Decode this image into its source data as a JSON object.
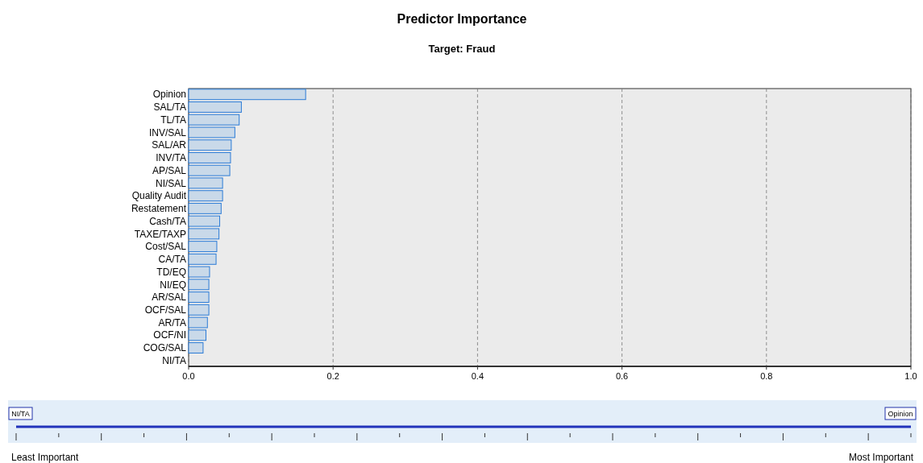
{
  "chart_data": {
    "type": "bar",
    "orientation": "horizontal",
    "title": "Predictor Importance",
    "subtitle": "Target: Fraud",
    "categories": [
      "Opinion",
      "SAL/TA",
      "TL/TA",
      "INV/SAL",
      "SAL/AR",
      "INV/TA",
      "AP/SAL",
      "NI/SAL",
      "Quality Audit",
      "Restatement",
      "Cash/TA",
      "TAXE/TAXP",
      "Cost/SAL",
      "CA/TA",
      "TD/EQ",
      "NI/EQ",
      "AR/SAL",
      "OCF/SAL",
      "AR/TA",
      "OCF/NI",
      "COG/SAL",
      "NI/TA"
    ],
    "values": [
      0.162,
      0.073,
      0.07,
      0.064,
      0.059,
      0.058,
      0.057,
      0.047,
      0.047,
      0.045,
      0.043,
      0.042,
      0.039,
      0.038,
      0.029,
      0.028,
      0.028,
      0.028,
      0.026,
      0.024,
      0.02,
      0
    ],
    "color": "#c9d9e9",
    "xlim": [
      0,
      1
    ],
    "xticks": [
      {
        "value": 0,
        "label": "0.0"
      },
      {
        "value": 0.2,
        "label": "0.2"
      },
      {
        "value": 0.4,
        "label": "0.4"
      },
      {
        "value": 0.6,
        "label": "0.6"
      },
      {
        "value": 0.8,
        "label": "0.8"
      },
      {
        "value": 1,
        "label": "1.0"
      }
    ],
    "grid": "x",
    "annotations": [
      "NI/TA",
      "Opinion",
      "Least Important",
      "Most Important"
    ]
  }
}
